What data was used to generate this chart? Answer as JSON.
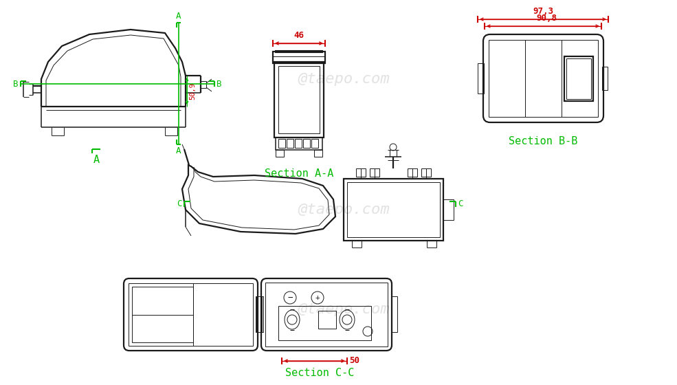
{
  "bg": "#ffffff",
  "lc": "#1a1a1a",
  "gc": "#00bb00",
  "rc": "#cc0000",
  "wm": "@taepo.com",
  "lw": 1.1,
  "lw2": 1.6,
  "lt": 0.7,
  "dim_46": "46",
  "dim_97_3": "97,3",
  "dim_90_8": "90,8",
  "dim_50_9": "50,9",
  "dim_50": "50",
  "sec_aa": "Section A-A",
  "sec_bb": "Section B-B",
  "sec_cc": "Section C-C",
  "label_A": "A",
  "label_B": "B",
  "label_C": "C"
}
